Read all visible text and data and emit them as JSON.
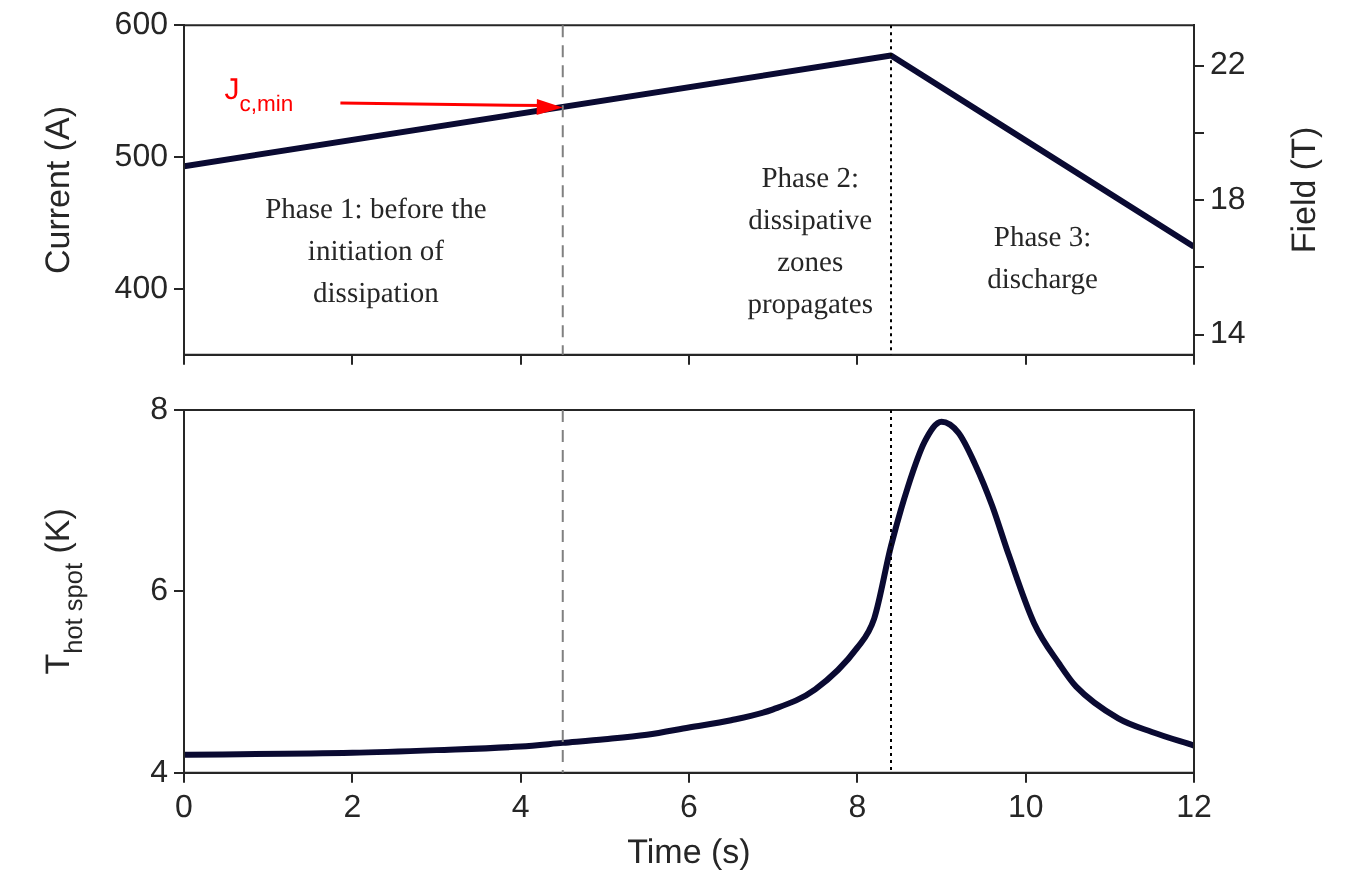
{
  "chart_data": [
    {
      "type": "line",
      "ylabel": "Current (A)",
      "y2label": "Field (T)",
      "x": [
        0,
        8.4,
        12
      ],
      "xlim": [
        0,
        12
      ],
      "xticks": [
        0,
        2,
        4,
        6,
        8,
        10,
        12
      ],
      "ylim": [
        350,
        600
      ],
      "yticks": [
        400,
        500,
        600
      ],
      "y2lim": [
        13.4,
        23.2
      ],
      "y2ticks": [
        14,
        {
          "value": 16,
          "label": null
        },
        18,
        {
          "value": 20,
          "label": null
        },
        22
      ],
      "tick_labels": "y",
      "series": [
        {
          "color": "#0a0a32",
          "values": [
            493,
            577,
            432
          ]
        }
      ],
      "ref_lines": [
        {
          "axis": "x",
          "value": 4.5,
          "color": "#808080",
          "line_style": "dashed"
        },
        {
          "axis": "x",
          "value": 8.4,
          "color": "#000000",
          "line_style": "dotted"
        }
      ],
      "annotations": [
        "J$_{c,min}$",
        "Phase 1: before the\ninitiation of\ndissipation",
        "Phase 2:\ndissipative\nzones\npropagates",
        "Phase 3:\ndischarge"
      ]
    },
    {
      "type": "line",
      "xlabel": "Time (s)",
      "ylabel": "T$_{hot spot}$ (K)",
      "xlim": [
        0,
        12
      ],
      "xticks": [
        0,
        2,
        4,
        6,
        8,
        10,
        12
      ],
      "ylim": [
        4,
        8
      ],
      "yticks": [
        4,
        6,
        8
      ],
      "x": [
        0,
        2,
        3,
        4,
        4.5,
        5,
        5.5,
        6,
        6.5,
        7,
        7.5,
        8,
        8.2,
        8.4,
        8.6,
        8.8,
        9,
        9.2,
        9.4,
        9.6,
        9.8,
        10.1,
        10.4,
        10.6,
        11.1,
        11.5,
        12
      ],
      "series": [
        {
          "color": "#0a0a32",
          "values": [
            4.2,
            4.22,
            4.25,
            4.29,
            4.33,
            4.37,
            4.42,
            4.5,
            4.58,
            4.7,
            4.92,
            5.38,
            5.7,
            6.5,
            7.15,
            7.65,
            7.87,
            7.75,
            7.4,
            6.95,
            6.4,
            5.65,
            5.2,
            4.95,
            4.6,
            4.45,
            4.3
          ]
        }
      ],
      "ref_lines": [
        {
          "axis": "x",
          "value": 4.5,
          "color": "#808080",
          "line_style": "dashed"
        },
        {
          "axis": "x",
          "value": 8.4,
          "color": "#000000",
          "line_style": "dotted"
        }
      ]
    }
  ]
}
